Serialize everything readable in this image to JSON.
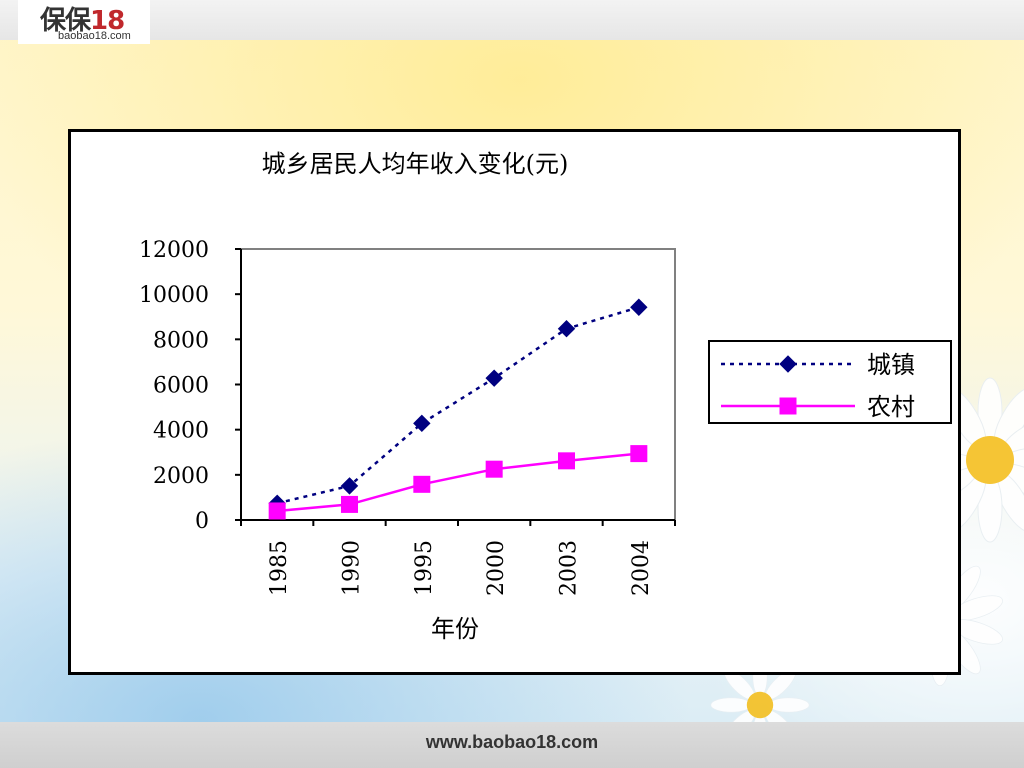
{
  "header": {
    "logo_text": "保保",
    "logo_number": "18",
    "logo_subtext": "baobao18.com"
  },
  "footer": {
    "url": "www.baobao18.com"
  },
  "chart_data": {
    "type": "line",
    "title": "城乡居民人均年收入变化(元)",
    "xlabel": "年份",
    "ylabel": "",
    "categories": [
      "1985",
      "1990",
      "1995",
      "2000",
      "2003",
      "2004"
    ],
    "ylim": [
      0,
      12000
    ],
    "yticks": [
      "0",
      "2000",
      "4000",
      "6000",
      "8000",
      "10000",
      "12000"
    ],
    "series": [
      {
        "name": "城镇",
        "values": [
          740,
          1510,
          4280,
          6280,
          8470,
          9420
        ],
        "color": "#000080",
        "marker": "diamond",
        "line_style": "dotted"
      },
      {
        "name": "农村",
        "values": [
          400,
          690,
          1580,
          2250,
          2620,
          2940
        ],
        "color": "#ff00ff",
        "marker": "square",
        "line_style": "solid"
      }
    ],
    "legend_position": "right",
    "grid": false
  }
}
